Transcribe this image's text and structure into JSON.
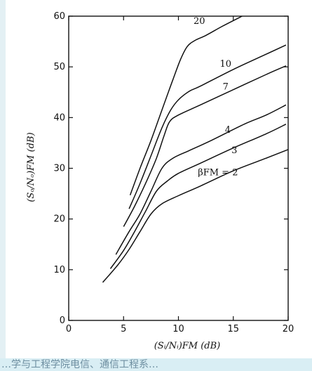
{
  "chart_data": {
    "type": "line",
    "xlabel": "(Sᵢ/Nᵢ)FM (dB)",
    "ylabel": "(Sₒ/Nₒ)FM (dB)",
    "xlim": [
      0,
      20
    ],
    "ylim": [
      0,
      60
    ],
    "x_ticks": [
      "0",
      "5",
      "10",
      "15",
      "20"
    ],
    "y_ticks": [
      "0",
      "10",
      "20",
      "30",
      "40",
      "50",
      "60"
    ],
    "grid": false,
    "legend": "none",
    "series": [
      {
        "label": "βFM = 2",
        "points": [
          [
            3.1,
            7.5
          ],
          [
            4.5,
            11
          ],
          [
            5.5,
            14
          ],
          [
            6.5,
            17.5
          ],
          [
            7.5,
            21
          ],
          [
            8.5,
            23
          ],
          [
            10,
            24.6
          ],
          [
            12,
            26.5
          ],
          [
            15,
            29.5
          ],
          [
            18,
            32
          ],
          [
            20,
            33.7
          ]
        ]
      },
      {
        "label": "3",
        "points": [
          [
            3.8,
            10.2
          ],
          [
            5,
            13.8
          ],
          [
            6,
            17.5
          ],
          [
            7,
            21.5
          ],
          [
            8,
            25.5
          ],
          [
            9,
            27.5
          ],
          [
            10,
            29
          ],
          [
            12,
            31
          ],
          [
            15,
            34
          ],
          [
            18,
            36.8
          ],
          [
            19.8,
            38.7
          ]
        ]
      },
      {
        "label": "4",
        "points": [
          [
            4.3,
            13
          ],
          [
            5.5,
            17.5
          ],
          [
            6.5,
            21
          ],
          [
            7.5,
            25.5
          ],
          [
            8.5,
            30
          ],
          [
            9.5,
            32
          ],
          [
            11,
            33.5
          ],
          [
            13,
            35.5
          ],
          [
            16,
            38.7
          ],
          [
            18,
            40.5
          ],
          [
            19.8,
            42.5
          ]
        ]
      },
      {
        "label": "7",
        "points": [
          [
            5,
            18.5
          ],
          [
            6,
            22.5
          ],
          [
            7,
            27
          ],
          [
            8,
            32
          ],
          [
            8.7,
            36.5
          ],
          [
            9.2,
            39.2
          ],
          [
            10,
            40.5
          ],
          [
            12,
            42.5
          ],
          [
            15,
            45.5
          ],
          [
            18,
            48.5
          ],
          [
            19.8,
            50.2
          ]
        ]
      },
      {
        "label": "10",
        "points": [
          [
            5.5,
            22
          ],
          [
            6.5,
            27
          ],
          [
            7.5,
            32.5
          ],
          [
            8.5,
            38
          ],
          [
            9.3,
            41.5
          ],
          [
            10,
            43.5
          ],
          [
            11,
            45.2
          ],
          [
            12,
            46.2
          ],
          [
            15,
            49.5
          ],
          [
            18,
            52.5
          ],
          [
            19.8,
            54.3
          ]
        ]
      },
      {
        "label": "20",
        "points": [
          [
            5.6,
            24.7
          ],
          [
            6.5,
            30
          ],
          [
            7.5,
            35.5
          ],
          [
            8.5,
            41.5
          ],
          [
            9.5,
            47.5
          ],
          [
            10.2,
            51.5
          ],
          [
            10.8,
            54
          ],
          [
            11.5,
            55.2
          ],
          [
            12.5,
            56.2
          ],
          [
            14,
            58
          ],
          [
            15.8,
            60
          ]
        ]
      }
    ]
  },
  "footer_text": "…学与工程学院电信、通信工程系…"
}
